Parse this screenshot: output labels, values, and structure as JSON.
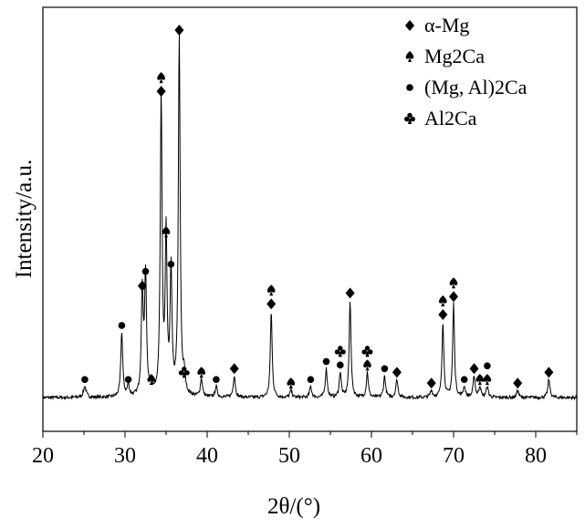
{
  "chart_data": {
    "type": "line",
    "title": "",
    "xlabel": "2θ/(°)",
    "ylabel": "Intensity/a.u.",
    "xlim": [
      20,
      85
    ],
    "x_ticks": [
      20,
      30,
      40,
      50,
      60,
      70,
      80
    ],
    "y_ticks": [],
    "grid": false,
    "legend_position": "top-right",
    "baseline_intensity": 2,
    "peaks": [
      {
        "x": 25.1,
        "h": 3,
        "w": 0.2
      },
      {
        "x": 29.6,
        "h": 18,
        "w": 0.14
      },
      {
        "x": 30.4,
        "h": 3,
        "w": 0.15
      },
      {
        "x": 32.1,
        "h": 29,
        "w": 0.14
      },
      {
        "x": 32.5,
        "h": 33,
        "w": 0.14
      },
      {
        "x": 33.2,
        "h": 3,
        "w": 0.15
      },
      {
        "x": 34.4,
        "h": 83,
        "w": 0.13
      },
      {
        "x": 35.0,
        "h": 44,
        "w": 0.13
      },
      {
        "x": 35.6,
        "h": 35,
        "w": 0.13
      },
      {
        "x": 36.6,
        "h": 100,
        "w": 0.13
      },
      {
        "x": 37.2,
        "h": 5,
        "w": 0.15
      },
      {
        "x": 39.3,
        "h": 5,
        "w": 0.15
      },
      {
        "x": 41.1,
        "h": 3,
        "w": 0.15
      },
      {
        "x": 43.3,
        "h": 6,
        "w": 0.15
      },
      {
        "x": 47.8,
        "h": 24,
        "w": 0.13
      },
      {
        "x": 50.2,
        "h": 2,
        "w": 0.15
      },
      {
        "x": 52.6,
        "h": 3,
        "w": 0.15
      },
      {
        "x": 54.5,
        "h": 8,
        "w": 0.14
      },
      {
        "x": 56.2,
        "h": 7,
        "w": 0.14
      },
      {
        "x": 57.4,
        "h": 27,
        "w": 0.13
      },
      {
        "x": 59.5,
        "h": 7,
        "w": 0.14
      },
      {
        "x": 61.6,
        "h": 6,
        "w": 0.14
      },
      {
        "x": 63.1,
        "h": 5,
        "w": 0.15
      },
      {
        "x": 67.3,
        "h": 2,
        "w": 0.15
      },
      {
        "x": 68.7,
        "h": 21,
        "w": 0.13
      },
      {
        "x": 70.0,
        "h": 26,
        "w": 0.13
      },
      {
        "x": 71.3,
        "h": 3,
        "w": 0.15
      },
      {
        "x": 72.5,
        "h": 6,
        "w": 0.14
      },
      {
        "x": 73.2,
        "h": 3,
        "w": 0.15
      },
      {
        "x": 74.1,
        "h": 3,
        "w": 0.15
      },
      {
        "x": 77.8,
        "h": 2,
        "w": 0.15
      },
      {
        "x": 81.6,
        "h": 5,
        "w": 0.15
      }
    ],
    "series": [
      {
        "name": "α-Mg",
        "marker": "diamond",
        "points": [
          [
            32.1,
            29
          ],
          [
            34.4,
            83
          ],
          [
            36.6,
            100
          ],
          [
            43.3,
            6
          ],
          [
            47.8,
            24
          ],
          [
            57.4,
            27
          ],
          [
            63.1,
            5
          ],
          [
            67.3,
            2
          ],
          [
            68.7,
            21
          ],
          [
            70.0,
            26
          ],
          [
            72.5,
            6
          ],
          [
            77.8,
            2
          ],
          [
            81.6,
            5
          ]
        ]
      },
      {
        "name": "Mg2Ca",
        "marker": "spade",
        "points": [
          [
            33.2,
            3
          ],
          [
            34.4,
            83
          ],
          [
            35.0,
            44
          ],
          [
            39.3,
            5
          ],
          [
            47.8,
            24
          ],
          [
            50.2,
            2
          ],
          [
            59.5,
            7
          ],
          [
            68.7,
            21
          ],
          [
            70.0,
            26
          ],
          [
            73.2,
            3
          ],
          [
            74.1,
            3
          ]
        ]
      },
      {
        "name": "(Mg, Al)2Ca",
        "marker": "circle",
        "points": [
          [
            25.1,
            3
          ],
          [
            29.6,
            18
          ],
          [
            30.4,
            3
          ],
          [
            32.5,
            33
          ],
          [
            35.6,
            35
          ],
          [
            41.1,
            3
          ],
          [
            52.6,
            3
          ],
          [
            54.5,
            8
          ],
          [
            56.2,
            7
          ],
          [
            61.6,
            6
          ],
          [
            71.3,
            3
          ],
          [
            74.1,
            3
          ]
        ]
      },
      {
        "name": "Al2Ca",
        "marker": "club",
        "points": [
          [
            37.2,
            5
          ],
          [
            56.2,
            7
          ],
          [
            59.5,
            7
          ]
        ]
      }
    ]
  }
}
